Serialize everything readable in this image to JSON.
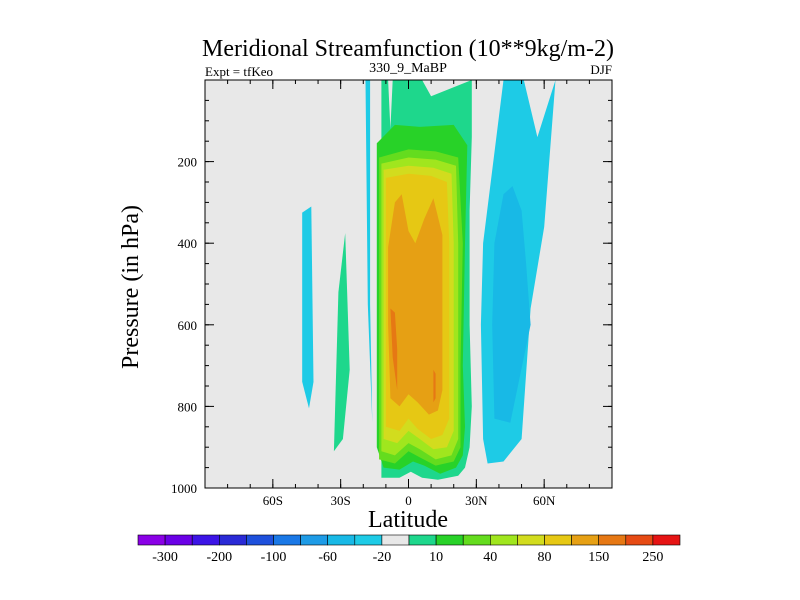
{
  "chart_data": {
    "type": "contour",
    "title": "Meridional Streamfunction (10**9kg/m-2)",
    "left_string": "Expt = tfKeo",
    "center_string": "330_9_MaBP",
    "right_string": "DJF",
    "xlabel": "Latitude",
    "ylabel": "Pressure (in hPa)",
    "xlim": [
      -90,
      90
    ],
    "ylim": [
      1000,
      0
    ],
    "x_ticks": [
      {
        "value": -60,
        "label": "60S"
      },
      {
        "value": -30,
        "label": "30S"
      },
      {
        "value": 0,
        "label": "0"
      },
      {
        "value": 30,
        "label": "30N"
      },
      {
        "value": 60,
        "label": "60N"
      }
    ],
    "y_ticks": [
      {
        "value": 200,
        "label": "200"
      },
      {
        "value": 400,
        "label": "400"
      },
      {
        "value": 600,
        "label": "600"
      },
      {
        "value": 800,
        "label": "800"
      },
      {
        "value": 1000,
        "label": "1000"
      }
    ],
    "background_color": "#e8e8e8",
    "colorbar": {
      "levels": [
        "-300",
        "-250",
        "-200",
        "-150",
        "-100",
        "-80",
        "-60",
        "-40",
        "-20",
        "-10",
        "10",
        "20",
        "40",
        "60",
        "80",
        "100",
        "150",
        "200",
        "250",
        "300"
      ],
      "labels": [
        {
          "after_box": 1,
          "text": "-300"
        },
        {
          "after_box": 3,
          "text": "-200"
        },
        {
          "after_box": 5,
          "text": "-100"
        },
        {
          "after_box": 7,
          "text": "-60"
        },
        {
          "after_box": 9,
          "text": "-20"
        },
        {
          "after_box": 11,
          "text": "10"
        },
        {
          "after_box": 13,
          "text": "40"
        },
        {
          "after_box": 15,
          "text": "80"
        },
        {
          "after_box": 17,
          "text": "150"
        },
        {
          "after_box": 19,
          "text": "250"
        }
      ],
      "colors": [
        "#8a00e6",
        "#6a00e6",
        "#3c14e6",
        "#2a2ad6",
        "#1e50dc",
        "#1a78e6",
        "#1e9be6",
        "#18b9e6",
        "#1ecbe6",
        "#e8e8e8",
        "#1ed78c",
        "#28d228",
        "#64dc1e",
        "#a0e61e",
        "#d2dc1e",
        "#e6c814",
        "#e6a014",
        "#e67814",
        "#e64b14",
        "#e61414"
      ]
    },
    "regions": [
      {
        "level": "-10",
        "color": "#1ecbe6",
        "lat": [
          -47,
          -43,
          -42,
          -44,
          -47
        ],
        "p": [
          325,
          310,
          740,
          805,
          740
        ]
      },
      {
        "level": "10",
        "color": "#1ed78c",
        "lat": [
          -28,
          -31,
          -33,
          -29,
          -26
        ],
        "p": [
          375,
          520,
          910,
          880,
          710
        ]
      },
      {
        "level": "-10",
        "color": "#1ecbe6",
        "lat": [
          -19,
          -17,
          -17,
          -16,
          -18
        ],
        "p": [
          0,
          0,
          550,
          840,
          550
        ]
      },
      {
        "level": "10",
        "color": "#1ed78c",
        "lat": [
          -12,
          -9,
          -8,
          -7,
          6,
          10,
          28,
          28,
          27,
          27,
          28,
          27,
          25,
          22,
          13,
          6,
          1,
          -4,
          -12
        ],
        "p": [
          0,
          0,
          120,
          0,
          0,
          40,
          0,
          140,
          320,
          600,
          800,
          900,
          950,
          970,
          980,
          975,
          960,
          975,
          975
        ]
      },
      {
        "level": "-10",
        "color": "#1ecbe6",
        "lat": [
          42,
          51,
          57,
          65,
          60,
          54,
          50,
          42,
          35,
          33,
          32,
          33
        ],
        "p": [
          0,
          0,
          140,
          0,
          360,
          560,
          880,
          935,
          940,
          880,
          600,
          400
        ]
      },
      {
        "level": "-20",
        "color": "#18b9e6",
        "lat": [
          42,
          46,
          50,
          52,
          54,
          45,
          38,
          37,
          38
        ],
        "p": [
          280,
          260,
          320,
          450,
          600,
          840,
          830,
          600,
          400
        ]
      },
      {
        "level": "20",
        "color": "#28d228",
        "lat": [
          -14,
          -6,
          5,
          20,
          26,
          25,
          24,
          25,
          24,
          21,
          14,
          7,
          2,
          -4,
          -11,
          -14,
          -14
        ],
        "p": [
          155,
          110,
          115,
          110,
          160,
          400,
          700,
          850,
          920,
          950,
          965,
          945,
          935,
          955,
          950,
          900,
          500
        ]
      },
      {
        "level": "40",
        "color": "#64dc1e",
        "lat": [
          -13,
          0,
          12,
          22,
          24,
          23,
          23,
          20,
          12,
          5,
          0,
          -6,
          -13,
          -13,
          -13
        ],
        "p": [
          190,
          170,
          175,
          190,
          400,
          700,
          900,
          935,
          945,
          925,
          910,
          940,
          930,
          500,
          200
        ]
      },
      {
        "level": "60",
        "color": "#a0e61e",
        "lat": [
          -12,
          0,
          12,
          21,
          22,
          22,
          22,
          19,
          12,
          5,
          0,
          -6,
          -12,
          -12
        ],
        "p": [
          205,
          190,
          195,
          210,
          400,
          700,
          880,
          920,
          930,
          905,
          890,
          920,
          910,
          500
        ]
      },
      {
        "level": "80",
        "color": "#d2dc1e",
        "lat": [
          -11,
          0,
          11,
          19,
          20,
          20,
          20,
          17,
          11,
          5,
          0,
          -5,
          -11,
          -11
        ],
        "p": [
          220,
          210,
          215,
          230,
          400,
          700,
          860,
          900,
          905,
          880,
          860,
          890,
          880,
          500
        ]
      },
      {
        "level": "100",
        "color": "#e6c814",
        "lat": [
          -10,
          0,
          10,
          17,
          18,
          18,
          18,
          15,
          10,
          4,
          0,
          -4,
          -10,
          -10
        ],
        "p": [
          240,
          230,
          235,
          250,
          400,
          700,
          830,
          870,
          880,
          855,
          830,
          860,
          850,
          500
        ]
      },
      {
        "level": "150",
        "color": "#e6a014",
        "lat": [
          -9,
          -6,
          -3,
          0,
          3,
          7,
          11,
          15,
          15,
          15,
          13,
          9,
          4,
          0,
          -4,
          -8,
          -9
        ],
        "p": [
          410,
          300,
          280,
          370,
          400,
          340,
          290,
          380,
          600,
          760,
          810,
          820,
          790,
          770,
          800,
          780,
          600
        ]
      },
      {
        "level": "200",
        "color": "#e67814",
        "lat": [
          -8,
          -6,
          -5,
          -5,
          -7
        ],
        "p": [
          560,
          570,
          660,
          760,
          680
        ]
      },
      {
        "level": "200",
        "color": "#e67814",
        "lat": [
          11,
          12,
          12,
          11
        ],
        "p": [
          710,
          720,
          780,
          790
        ]
      }
    ]
  }
}
